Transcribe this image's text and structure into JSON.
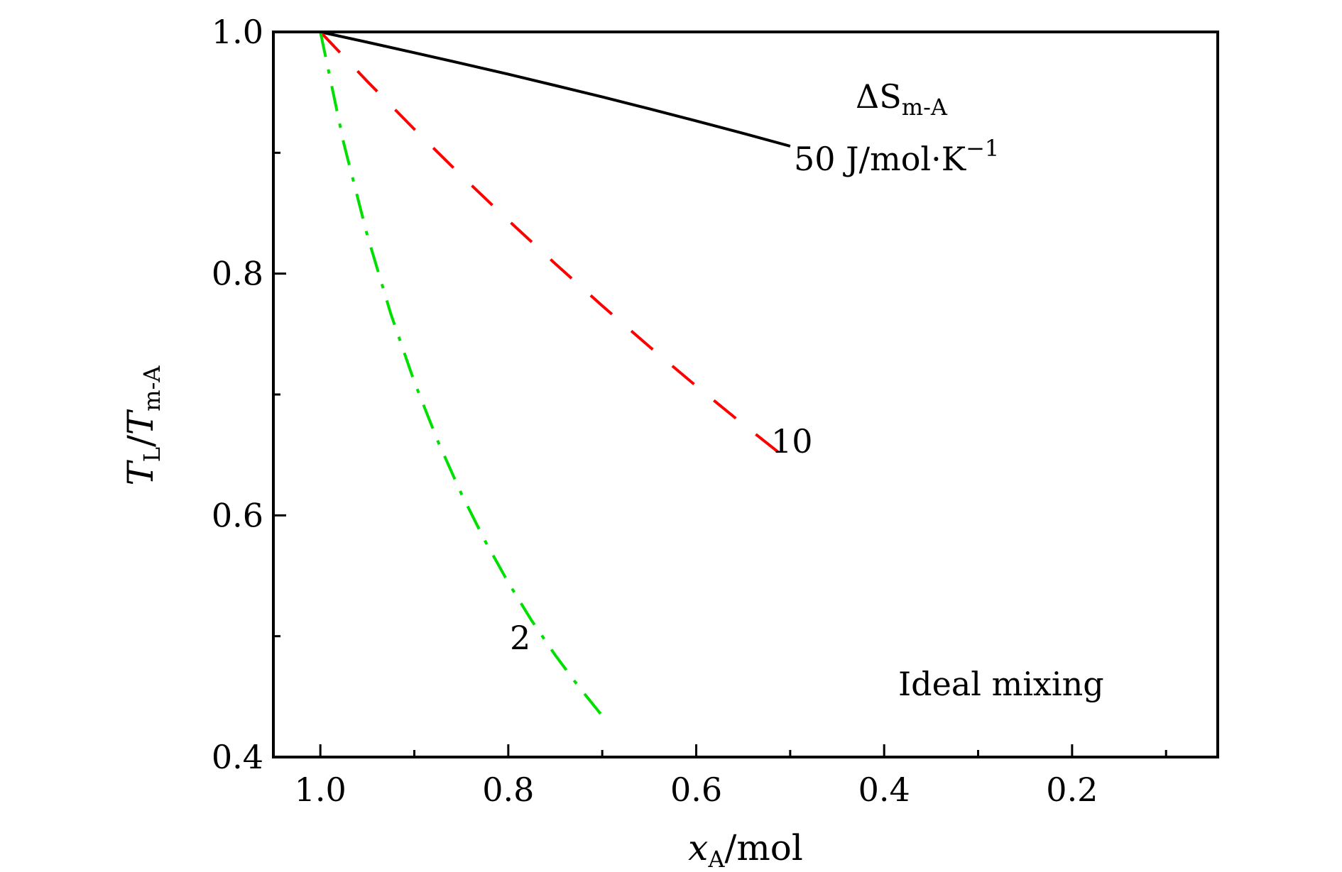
{
  "chart_data": {
    "type": "line",
    "xlabel": {
      "var": "x",
      "sub": "A",
      "unit": "/mol"
    },
    "ylabel": {
      "var": "T",
      "sub": "L",
      "sep": "/",
      "var2": "T",
      "sub2": "m-A"
    },
    "xlim": [
      1.05,
      0.045
    ],
    "ylim": [
      0.4,
      1.0
    ],
    "x_ticks": [
      1.0,
      0.8,
      0.6,
      0.4,
      0.2
    ],
    "x_tick_labels": [
      "1.0",
      "0.8",
      "0.6",
      "0.4",
      "0.2"
    ],
    "x_minor_ticks": [
      0.9,
      0.7,
      0.5,
      0.3,
      0.1
    ],
    "y_ticks": [
      1.0,
      0.8,
      0.6,
      0.4
    ],
    "y_tick_labels": [
      "1.0",
      "0.8",
      "0.6",
      "0.4"
    ],
    "y_minor_ticks": [
      0.9,
      0.7,
      0.5
    ],
    "grid": false,
    "series": [
      {
        "name": "50 J/mol·K⁻¹",
        "color": "#000000",
        "style": "solid",
        "x": [
          1.0,
          0.95,
          0.9,
          0.85,
          0.8,
          0.75,
          0.7,
          0.65,
          0.6,
          0.55,
          0.5
        ],
        "y": [
          1.0,
          0.9915,
          0.9828,
          0.974,
          0.965,
          0.9557,
          0.9462,
          0.9364,
          0.9264,
          0.9161,
          0.9055
        ]
      },
      {
        "name": "10",
        "color": "#ff0000",
        "style": "dashed",
        "x": [
          1.0,
          0.95,
          0.9,
          0.85,
          0.8,
          0.75,
          0.7,
          0.65,
          0.6,
          0.55,
          0.5
        ],
        "y": [
          1.0,
          0.9591,
          0.9195,
          0.8812,
          0.8441,
          0.8082,
          0.7734,
          0.7397,
          0.707,
          0.6753,
          0.6445
        ]
      },
      {
        "name": "2",
        "color": "#00e000",
        "style": "dash-dot",
        "x": [
          1.0,
          0.975,
          0.95,
          0.925,
          0.9,
          0.875,
          0.85,
          0.825,
          0.8,
          0.775,
          0.75,
          0.725,
          0.7
        ],
        "y": [
          1.0,
          0.9075,
          0.8316,
          0.7667,
          0.7105,
          0.6614,
          0.6179,
          0.5792,
          0.5444,
          0.5128,
          0.4843,
          0.4582,
          0.4341
        ]
      }
    ],
    "annotations": {
      "entropy_header": {
        "prefix": "ΔS",
        "sub": "m-A"
      },
      "curve_black": "50 J/mol·K",
      "curve_black_sup": "−1",
      "curve_red": "10",
      "curve_green": "2",
      "model": "Ideal mixing"
    }
  }
}
